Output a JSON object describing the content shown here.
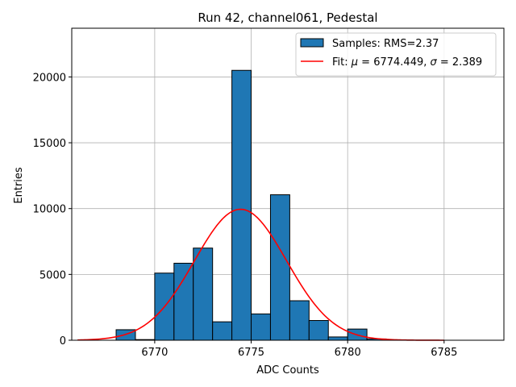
{
  "chart_data": {
    "type": "bar",
    "title": "Run 42, channel061, Pedestal",
    "xlabel": "ADC Counts",
    "ylabel": "Entries",
    "xlim": [
      6765.7,
      6788.1
    ],
    "ylim": [
      0,
      23700
    ],
    "xticks": [
      6770,
      6775,
      6780,
      6785
    ],
    "yticks": [
      0,
      5000,
      10000,
      15000,
      20000
    ],
    "grid": true,
    "legend_position": "top-right",
    "colors": {
      "bars": "#1f77b4",
      "bar_edge": "#000000",
      "fit": "#ff0000",
      "grid": "#b0b0b0"
    },
    "histogram": {
      "name": "Samples: RMS=2.37",
      "bin_edges": [
        6766.0,
        6767.0,
        6768.0,
        6769.0,
        6770.0,
        6771.0,
        6772.0,
        6773.0,
        6774.0,
        6775.0,
        6776.0,
        6777.0,
        6778.0,
        6779.0,
        6780.0,
        6781.0,
        6782.0,
        6783.0,
        6784.0,
        6785.0,
        6786.0,
        6787.0
      ],
      "counts": [
        0,
        0,
        800,
        50,
        5100,
        5850,
        7000,
        1400,
        20500,
        2000,
        11050,
        3000,
        1500,
        250,
        850,
        100,
        0,
        0,
        0,
        0,
        0
      ]
    },
    "fit": {
      "name_prefix": "Fit: ",
      "name_rest": " = 6774.449, ",
      "name_rest2": " = 2.389",
      "mu": 6774.449,
      "sigma": 2.389,
      "amplitude": 9950,
      "x_range": [
        6766.0,
        6785.0
      ]
    }
  }
}
